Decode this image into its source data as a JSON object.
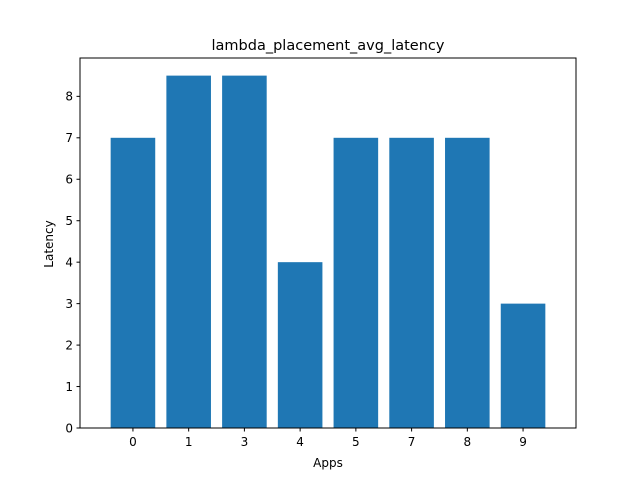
{
  "chart_data": {
    "type": "bar",
    "title": "lambda_placement_avg_latency",
    "xlabel": "Apps",
    "ylabel": "Latency",
    "categories": [
      "0",
      "1",
      "3",
      "4",
      "5",
      "7",
      "8",
      "9"
    ],
    "values": [
      7,
      8.5,
      8.5,
      4,
      7,
      7,
      7,
      3
    ],
    "ylim": [
      0,
      8.925
    ],
    "yticks": [
      0,
      1,
      2,
      3,
      4,
      5,
      6,
      7,
      8
    ],
    "grid": false,
    "legend": "none",
    "colors": {
      "bar": "#1f77b4",
      "axis": "#000000",
      "background": "#ffffff"
    }
  }
}
